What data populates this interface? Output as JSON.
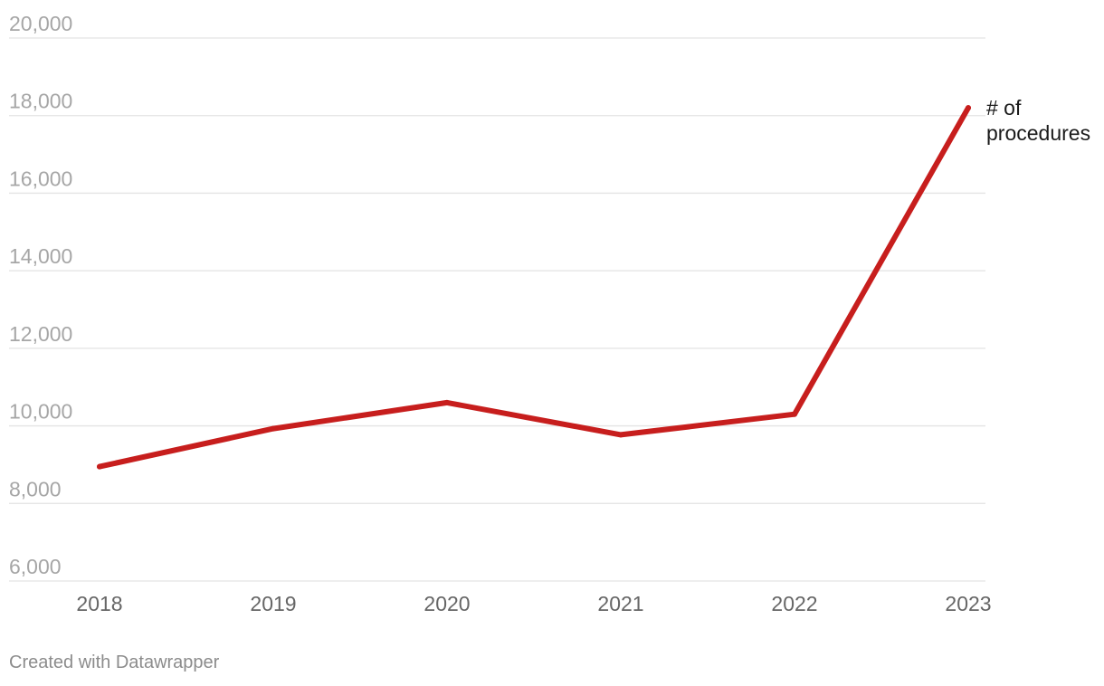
{
  "chart_data": {
    "type": "line",
    "title": "",
    "xlabel": "",
    "ylabel": "",
    "x": [
      "2018",
      "2019",
      "2020",
      "2021",
      "2022",
      "2023"
    ],
    "series": [
      {
        "name": "# of procedures",
        "name_lines": [
          "# of",
          "procedures"
        ],
        "values": [
          8950,
          9930,
          10600,
          9770,
          10300,
          18200
        ],
        "color": "#c71e1d"
      }
    ],
    "ylim": [
      6000,
      20000
    ],
    "y_ticks": [
      6000,
      8000,
      10000,
      12000,
      14000,
      16000,
      18000,
      20000
    ],
    "y_tick_labels": [
      "6,000",
      "8,000",
      "10,000",
      "12,000",
      "14,000",
      "16,000",
      "18,000",
      "20,000"
    ],
    "grid": true,
    "legend": "direct label at line end (right)"
  },
  "colors": {
    "line": "#c71e1d",
    "gridline": "#e3e3e3",
    "y_tick_text": "#a6a6a6",
    "x_tick_text": "#666666",
    "footer_text": "#8c8c8c"
  },
  "footer": {
    "credit": "Created with Datawrapper"
  }
}
